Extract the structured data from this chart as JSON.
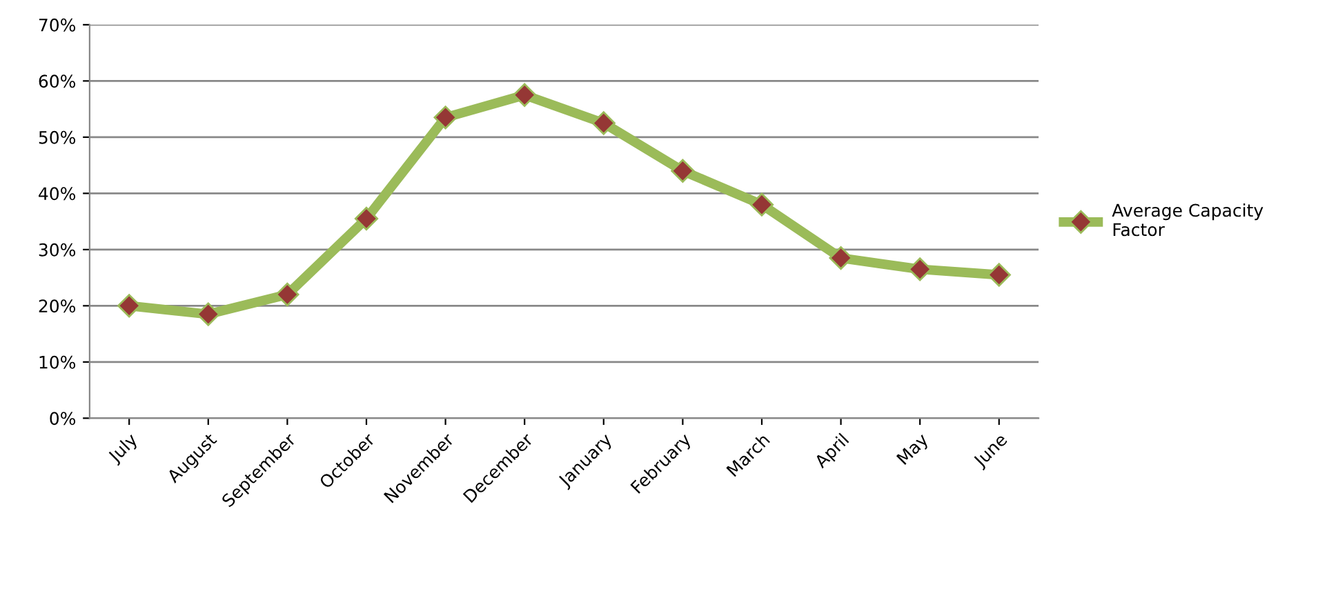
{
  "chart_data": {
    "type": "line",
    "categories": [
      "July",
      "August",
      "September",
      "October",
      "November",
      "December",
      "January",
      "February",
      "March",
      "April",
      "May",
      "June"
    ],
    "series": [
      {
        "name": "Average Capacity Factor",
        "color": "#9bbb59",
        "values": [
          0.2,
          0.185,
          0.22,
          0.355,
          0.535,
          0.575,
          0.525,
          0.44,
          0.38,
          0.285,
          0.265,
          0.255
        ]
      }
    ],
    "ylim": [
      0,
      0.7
    ],
    "yticks": [
      {
        "value": 0,
        "label": "0%"
      },
      {
        "value": 0.1,
        "label": "10%"
      },
      {
        "value": 0.2,
        "label": "20%"
      },
      {
        "value": 0.3,
        "label": "30%"
      },
      {
        "value": 0.4,
        "label": "40%"
      },
      {
        "value": 0.5,
        "label": "50%"
      },
      {
        "value": 0.6,
        "label": "60%"
      },
      {
        "value": 0.7,
        "label": "70%"
      }
    ],
    "grid": "y",
    "legend": "right",
    "marker": "diamond",
    "line_style": "solid"
  }
}
